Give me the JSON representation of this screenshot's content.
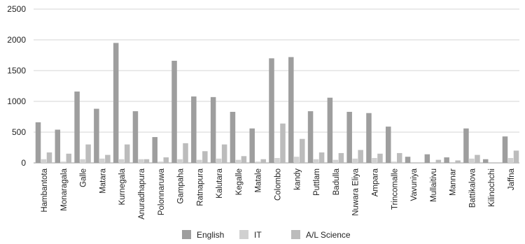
{
  "chart_data": {
    "type": "bar",
    "categories": [
      "Hambantota",
      "Monaragala",
      "Galle",
      "Matara",
      "Kurnegala",
      "Anuradhapura",
      "Polonnaruwa",
      "Gampaha",
      "Ratnapura",
      "Kalutara",
      "Kegalle",
      "Matale",
      "Colombo",
      "kandy",
      "Puttlam",
      "Badulla",
      "Nuwara Eliya",
      "Ampara",
      "Trincomalle",
      "Vavuniya",
      "Mullaitivu",
      "Mannar",
      "Battikalova",
      "Kilinochchi",
      "Jaffna"
    ],
    "series": [
      {
        "name": "English",
        "color": "#9e9e9e",
        "values": [
          660,
          540,
          1160,
          880,
          1950,
          840,
          420,
          1660,
          1080,
          1070,
          830,
          560,
          1700,
          1720,
          840,
          1060,
          830,
          810,
          590,
          100,
          140,
          90,
          560,
          60,
          430
        ]
      },
      {
        "name": "IT",
        "color": "#d0d0d0",
        "values": [
          60,
          20,
          60,
          70,
          60,
          60,
          20,
          60,
          50,
          70,
          50,
          20,
          80,
          100,
          60,
          50,
          70,
          80,
          20,
          0,
          0,
          0,
          70,
          0,
          80
        ]
      },
      {
        "name": "A/L Science",
        "color": "#bcbcbc",
        "values": [
          170,
          150,
          300,
          130,
          300,
          60,
          90,
          320,
          190,
          300,
          110,
          60,
          640,
          390,
          170,
          160,
          210,
          150,
          160,
          0,
          50,
          40,
          130,
          0,
          200
        ]
      }
    ],
    "ylim": [
      0,
      2500
    ],
    "yticks": [
      0,
      500,
      1000,
      1500,
      2000,
      2500
    ],
    "grid": true,
    "legend_position": "bottom"
  }
}
